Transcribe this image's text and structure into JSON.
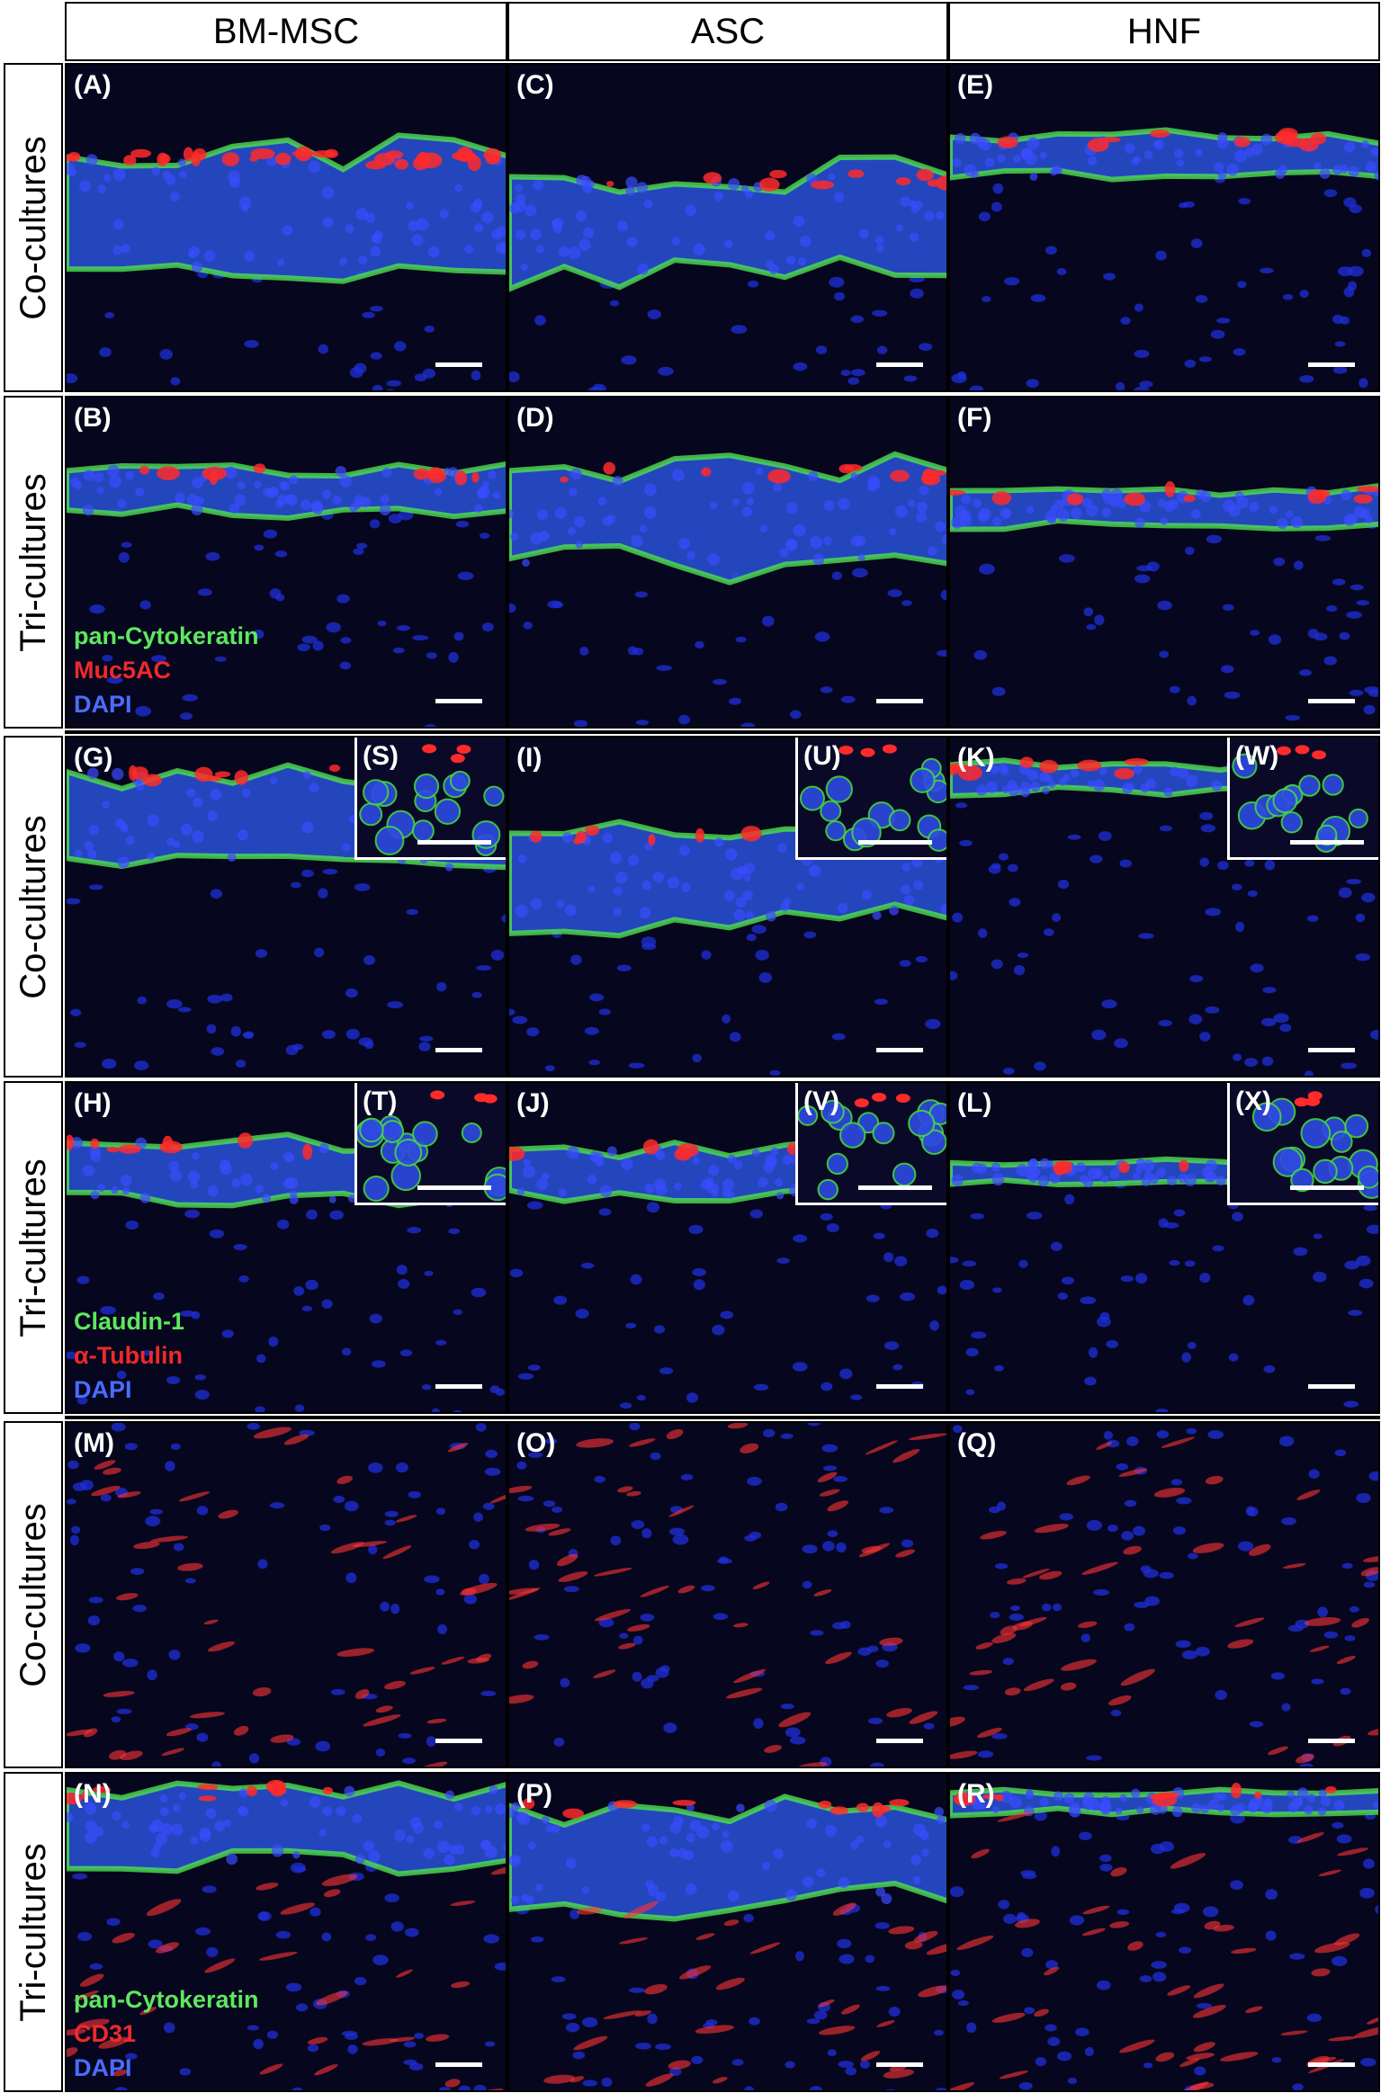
{
  "columns": [
    "BM-MSC",
    "ASC",
    "HNF"
  ],
  "rows": [
    "Co-cultures",
    "Tri-cultures",
    "Co-cultures",
    "Tri-cultures",
    "Co-cultures",
    "Tri-cultures"
  ],
  "panels": [
    [
      "(A)",
      "(C)",
      "(E)"
    ],
    [
      "(B)",
      "(D)",
      "(F)"
    ],
    [
      "(G)",
      "(I)",
      "(K)"
    ],
    [
      "(H)",
      "(J)",
      "(L)"
    ],
    [
      "(M)",
      "(O)",
      "(Q)"
    ],
    [
      "(N)",
      "(P)",
      "(R)"
    ]
  ],
  "insets": [
    [
      "(S)",
      "(U)",
      "(W)"
    ],
    [
      "(T)",
      "(V)",
      "(X)"
    ]
  ],
  "legends": [
    {
      "lines": [
        {
          "text": "pan-Cytokeratin",
          "color": "#5ee85e"
        },
        {
          "text": "Muc5AC",
          "color": "#ee2a2a"
        },
        {
          "text": "DAPI",
          "color": "#4a6cff"
        }
      ]
    },
    {
      "lines": [
        {
          "text": "Claudin-1",
          "color": "#5ee85e"
        },
        {
          "text": "α-Tubulin",
          "color": "#ee2a2a"
        },
        {
          "text": "DAPI",
          "color": "#4a6cff"
        }
      ]
    },
    {
      "lines": [
        {
          "text": "pan-Cytokeratin",
          "color": "#5ee85e"
        },
        {
          "text": "CD31",
          "color": "#ee2a2a"
        },
        {
          "text": "DAPI",
          "color": "#4a6cff"
        }
      ]
    }
  ]
}
